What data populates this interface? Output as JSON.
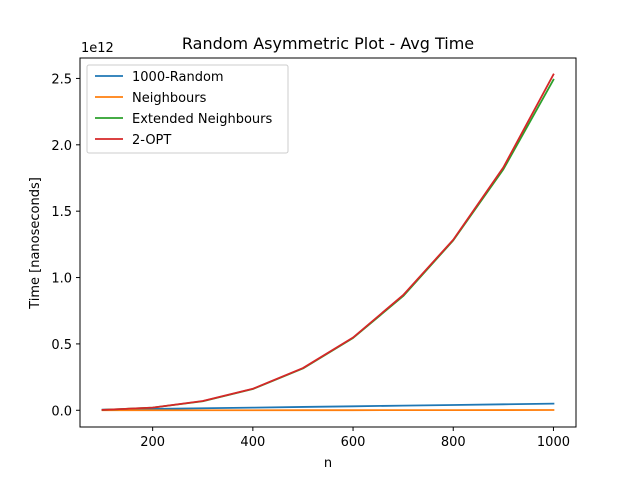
{
  "chart_data": {
    "type": "line",
    "title": "Random Asymmetric Plot - Avg Time",
    "xlabel": "n",
    "ylabel": "Time [nanoseconds]",
    "y_offset_label": "1e12",
    "xlim": [
      55,
      1045
    ],
    "ylim": [
      -0.126,
      2.654
    ],
    "x_ticks": [
      200,
      400,
      600,
      800,
      1000
    ],
    "y_ticks": [
      0.0,
      0.5,
      1.0,
      1.5,
      2.0,
      2.5
    ],
    "x_tick_labels": [
      "200",
      "400",
      "600",
      "800",
      "1000"
    ],
    "y_tick_labels": [
      "0.0",
      "0.5",
      "1.0",
      "1.5",
      "2.0",
      "2.5"
    ],
    "x": [
      100,
      200,
      300,
      400,
      500,
      600,
      700,
      800,
      900,
      1000
    ],
    "legend_position": "upper-left",
    "grid": false,
    "series": [
      {
        "name": "1000-Random",
        "color": "#1f77b4",
        "values": [
          0.005,
          0.01,
          0.015,
          0.02,
          0.025,
          0.03,
          0.035,
          0.04,
          0.045,
          0.05
        ]
      },
      {
        "name": "Neighbours",
        "color": "#ff7f0e",
        "values": [
          0.0,
          0.0001,
          0.0002,
          0.0004,
          0.0006,
          0.0008,
          0.0011,
          0.0014,
          0.0017,
          0.002
        ]
      },
      {
        "name": "Extended Neighbours",
        "color": "#2ca02c",
        "values": [
          0.003,
          0.02,
          0.068,
          0.16,
          0.315,
          0.545,
          0.86,
          1.28,
          1.815,
          2.49
        ]
      },
      {
        "name": "2-OPT",
        "color": "#d62728",
        "values": [
          0.003,
          0.02,
          0.07,
          0.162,
          0.318,
          0.548,
          0.868,
          1.285,
          1.83,
          2.53
        ]
      }
    ]
  }
}
